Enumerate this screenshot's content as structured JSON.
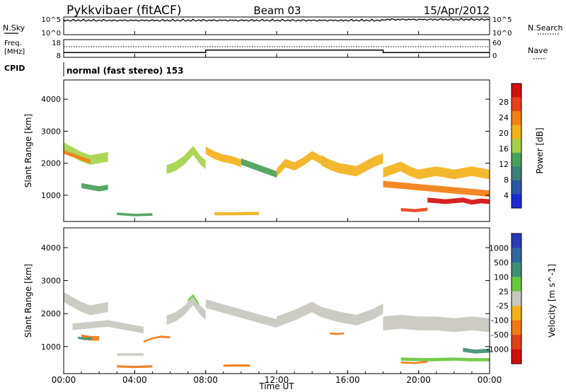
{
  "header": {
    "radar": "Pykkvibaer (fitACF)",
    "beam": "Beam 03",
    "date": "15/Apr/2012"
  },
  "noise_panel": {
    "left_label": "N.Sky",
    "left_ticks": [
      "10^5",
      "10^0"
    ],
    "right_ticks": [
      "10^5",
      "10^0"
    ],
    "right_label": "N.Search"
  },
  "freq_panel": {
    "left_label_1": "Freq.",
    "left_label_2": "[MHz]",
    "left_ticks": [
      "18",
      "8"
    ],
    "right_ticks": [
      "60",
      "0"
    ],
    "right_label": "Nave",
    "freq_mhz_segments": [
      [
        0,
        8,
        10.5
      ],
      [
        8,
        18,
        12.0
      ],
      [
        18,
        24,
        10.5
      ]
    ],
    "nave": 45
  },
  "cpid": {
    "label": "CPID",
    "text": "normal (fast stereo) 153"
  },
  "x_axis": {
    "ticks": [
      "00:00",
      "04:00",
      "08:00",
      "12:00",
      "16:00",
      "20:00",
      "00:00"
    ],
    "label": "Time UT",
    "range_hours": [
      0,
      24
    ]
  },
  "power_panel": {
    "ylabel": "Slant Range [km]",
    "yticks": [
      "4000",
      "3000",
      "2000",
      "1000"
    ],
    "colorbar_label": "Power [dB]",
    "colorbar_ticks": [
      "28",
      "24",
      "20",
      "16",
      "12",
      "8",
      "4"
    ],
    "colors": [
      "#1a2bd6",
      "#2b56a8",
      "#3f7f7a",
      "#4aa05a",
      "#a6d24a",
      "#f2b21c",
      "#f27f14",
      "#e8401a",
      "#d40f0f"
    ]
  },
  "velocity_panel": {
    "ylabel": "Slant Range [km]",
    "yticks": [
      "4000",
      "3000",
      "2000",
      "1000"
    ],
    "colorbar_label": "Velocity [m s^-1]",
    "colorbar_ticks": [
      "1000",
      "500",
      "100",
      "25",
      "-25",
      "-100",
      "-500",
      "-1000"
    ],
    "colors": [
      "#2a3bb8",
      "#33689a",
      "#3f8f73",
      "#6ac83e",
      "#c8c8c0",
      "#f2b21c",
      "#f07a14",
      "#e04018",
      "#d40f0f"
    ]
  },
  "chart_data": [
    {
      "type": "heatmap",
      "title": "Power",
      "x_unit": "hours UT",
      "y_unit": "km",
      "xlim": [
        0,
        24
      ],
      "ylim": [
        180,
        4600
      ],
      "value_range": [
        0,
        30
      ],
      "bands": [
        {
          "t": [
            0.0,
            0.5,
            1.0,
            1.5,
            2.0,
            2.5
          ],
          "r": [
            2500,
            2350,
            2200,
            2100,
            2150,
            2200
          ],
          "w": 300,
          "v": 14
        },
        {
          "t": [
            0.0,
            0.5,
            1.0,
            1.5
          ],
          "r": [
            2350,
            2250,
            2150,
            2050
          ],
          "w": 120,
          "v": 22
        },
        {
          "t": [
            5.8,
            6.3,
            6.8,
            7.3,
            7.7,
            8.0
          ],
          "r": [
            1800,
            1900,
            2100,
            2400,
            2100,
            1950
          ],
          "w": 280,
          "v": 16
        },
        {
          "t": [
            8.0,
            8.5,
            9.0,
            9.5,
            10.0
          ],
          "r": [
            2400,
            2250,
            2150,
            2100,
            2000
          ],
          "w": 240,
          "v": 18
        },
        {
          "t": [
            10.0,
            10.5,
            11.0,
            11.5,
            12.0
          ],
          "r": [
            2050,
            1950,
            1850,
            1750,
            1650
          ],
          "w": 200,
          "v": 13
        },
        {
          "t": [
            12.0,
            12.5,
            13.0,
            13.5,
            14.0,
            14.5
          ],
          "r": [
            1700,
            2000,
            1900,
            2050,
            2250,
            2100
          ],
          "w": 260,
          "v": 17
        },
        {
          "t": [
            14.5,
            15.0,
            15.5,
            16.0,
            16.5,
            17.0,
            17.5,
            18.0
          ],
          "r": [
            2100,
            1950,
            1850,
            1800,
            1750,
            1900,
            2050,
            2150
          ],
          "w": 320,
          "v": 19
        },
        {
          "t": [
            18.0,
            18.5,
            19.0,
            19.5,
            20.0,
            20.5,
            21.0,
            21.5,
            22.0,
            22.5,
            23.0,
            23.5,
            24.0
          ],
          "r": [
            1700,
            1800,
            1900,
            1750,
            1650,
            1700,
            1750,
            1700,
            1650,
            1700,
            1750,
            1700,
            1650
          ],
          "w": 300,
          "v": 19
        },
        {
          "t": [
            18.0,
            19.0,
            20.0,
            21.0,
            22.0,
            23.0,
            24.0
          ],
          "r": [
            1350,
            1300,
            1250,
            1200,
            1150,
            1100,
            1050
          ],
          "w": 200,
          "v": 23
        },
        {
          "t": [
            20.5,
            21.5,
            22.5,
            23.0,
            23.5,
            24.0
          ],
          "r": [
            850,
            800,
            850,
            780,
            820,
            800
          ],
          "w": 150,
          "v": 27
        },
        {
          "t": [
            1.0,
            1.5,
            2.0,
            2.5
          ],
          "r": [
            1300,
            1250,
            1200,
            1250
          ],
          "w": 160,
          "v": 10
        },
        {
          "t": [
            8.5,
            9.5,
            10.5,
            11.0
          ],
          "r": [
            420,
            420,
            430,
            430
          ],
          "w": 100,
          "v": 19
        },
        {
          "t": [
            3.0,
            4.0,
            5.0
          ],
          "r": [
            420,
            380,
            400
          ],
          "w": 80,
          "v": 12
        },
        {
          "t": [
            19.0,
            19.8,
            20.5
          ],
          "r": [
            550,
            520,
            560
          ],
          "w": 100,
          "v": 26
        }
      ]
    },
    {
      "type": "heatmap",
      "title": "Velocity",
      "x_unit": "hours UT",
      "y_unit": "km",
      "xlim": [
        0,
        24
      ],
      "ylim": [
        180,
        4600
      ],
      "value_range": [
        -1000,
        1000
      ],
      "bands": [
        {
          "t": [
            0.0,
            0.5,
            1.0,
            1.5,
            2.0,
            2.5
          ],
          "r": [
            2500,
            2350,
            2200,
            2100,
            2150,
            2200
          ],
          "w": 300,
          "v": 0
        },
        {
          "t": [
            0.5,
            1.5,
            2.5,
            3.5,
            4.5
          ],
          "r": [
            1600,
            1650,
            1700,
            1600,
            1500
          ],
          "w": 200,
          "v": 0
        },
        {
          "t": [
            5.8,
            6.3,
            6.8,
            7.3,
            7.7,
            8.0
          ],
          "r": [
            1800,
            1900,
            2100,
            2400,
            2100,
            1950
          ],
          "w": 280,
          "v": 0
        },
        {
          "t": [
            8.0,
            9.0,
            10.0,
            11.0,
            12.0
          ],
          "r": [
            2300,
            2150,
            2000,
            1850,
            1700
          ],
          "w": 260,
          "v": 0
        },
        {
          "t": [
            12.0,
            13.0,
            14.0,
            14.5,
            15.5,
            16.5,
            17.5,
            18.0
          ],
          "r": [
            1750,
            1950,
            2200,
            2050,
            1900,
            1800,
            2000,
            2150
          ],
          "w": 320,
          "v": 0
        },
        {
          "t": [
            18.0,
            19.0,
            20.0,
            21.0,
            22.0,
            23.0,
            24.0
          ],
          "r": [
            1700,
            1750,
            1700,
            1700,
            1650,
            1700,
            1650
          ],
          "w": 420,
          "v": 0
        },
        {
          "t": [
            1.0,
            1.5,
            2.0
          ],
          "r": [
            1300,
            1250,
            1250
          ],
          "w": 140,
          "v": -120
        },
        {
          "t": [
            0.8,
            1.2,
            1.6
          ],
          "r": [
            1270,
            1230,
            1250
          ],
          "w": 70,
          "v": 150
        },
        {
          "t": [
            3.0,
            3.8,
            4.5
          ],
          "r": [
            760,
            760,
            760
          ],
          "w": 70,
          "v": 0
        },
        {
          "t": [
            4.5,
            5.0,
            5.5,
            6.0
          ],
          "r": [
            1150,
            1250,
            1300,
            1280
          ],
          "w": 60,
          "v": -400
        },
        {
          "t": [
            9.0,
            9.8,
            10.5
          ],
          "r": [
            420,
            430,
            420
          ],
          "w": 70,
          "v": -150
        },
        {
          "t": [
            3.0,
            4.0,
            5.0
          ],
          "r": [
            400,
            380,
            400
          ],
          "w": 70,
          "v": -200
        },
        {
          "t": [
            19.0,
            20.5,
            22.0,
            23.0,
            24.0
          ],
          "r": [
            620,
            600,
            620,
            600,
            600
          ],
          "w": 100,
          "v": 80
        },
        {
          "t": [
            22.5,
            23.2,
            24.0
          ],
          "r": [
            900,
            850,
            880
          ],
          "w": 120,
          "v": 300
        },
        {
          "t": [
            15.0,
            15.4,
            15.8
          ],
          "r": [
            1400,
            1380,
            1400
          ],
          "w": 60,
          "v": -200
        },
        {
          "t": [
            19.0,
            19.8,
            20.5
          ],
          "r": [
            520,
            500,
            540
          ],
          "w": 60,
          "v": -250
        },
        {
          "t": [
            7.0,
            7.3,
            7.6
          ],
          "r": [
            2400,
            2550,
            2300
          ],
          "w": 80,
          "v": 90
        }
      ]
    }
  ]
}
